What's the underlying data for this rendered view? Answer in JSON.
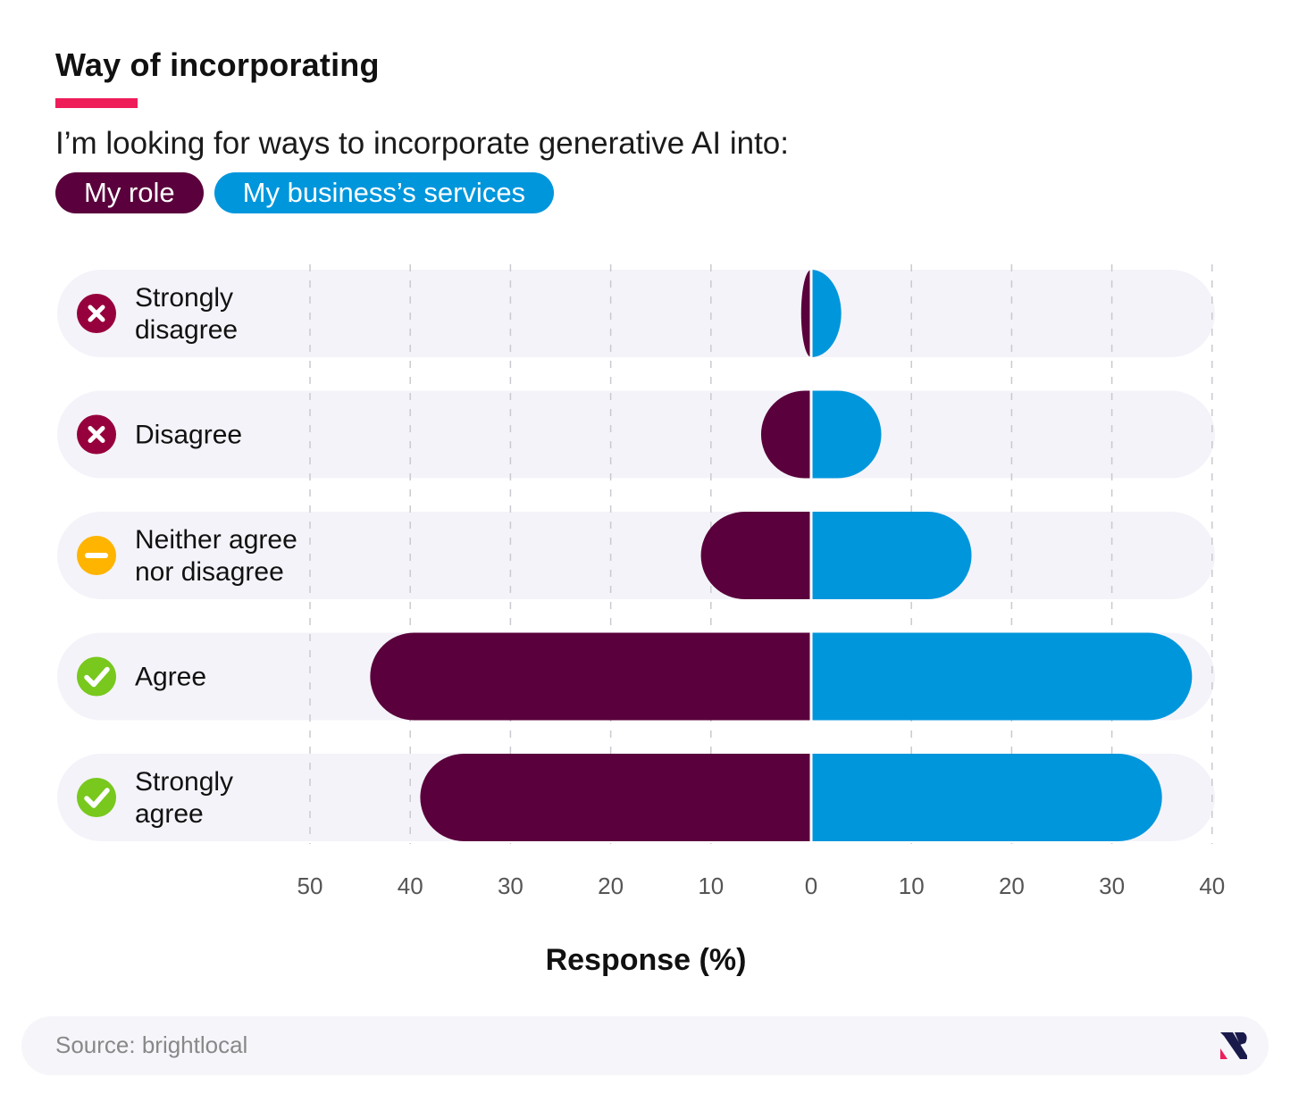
{
  "title": "Way of incorporating",
  "subtitle": "I’m looking for ways to incorporate generative AI into:",
  "colors": {
    "accent": "#ee1d5a",
    "role": "#5a003c",
    "business": "#0096dc",
    "row_bg": "#f4f3f9",
    "disagree_icon": "#96003c",
    "neutral_icon": "#ffb400",
    "agree_icon": "#78c81e"
  },
  "source": "Source: brightlocal",
  "chart_data": {
    "type": "bar",
    "orientation": "horizontal-diverging",
    "categories": [
      {
        "lines": [
          "Strongly",
          "disagree"
        ],
        "icon": "cross-icon"
      },
      {
        "lines": [
          "Disagree"
        ],
        "icon": "cross-icon"
      },
      {
        "lines": [
          "Neither agree",
          "nor disagree"
        ],
        "icon": "minus-icon"
      },
      {
        "lines": [
          "Agree"
        ],
        "icon": "check-icon"
      },
      {
        "lines": [
          "Strongly",
          "agree"
        ],
        "icon": "check-icon"
      }
    ],
    "series": [
      {
        "name": "My role",
        "side": "left",
        "values": [
          1,
          5,
          11,
          44,
          39
        ]
      },
      {
        "name": "My business’s services",
        "side": "right",
        "values": [
          3,
          7,
          16,
          38,
          35
        ]
      }
    ],
    "xlabel": "Response (%)",
    "left_ticks": [
      50,
      40,
      30,
      20,
      10,
      0
    ],
    "right_ticks": [
      10,
      20,
      30,
      40
    ],
    "xlim_left": [
      0,
      50
    ],
    "xlim_right": [
      0,
      40
    ],
    "grid": "dashed vertical",
    "legend": "top-left"
  }
}
